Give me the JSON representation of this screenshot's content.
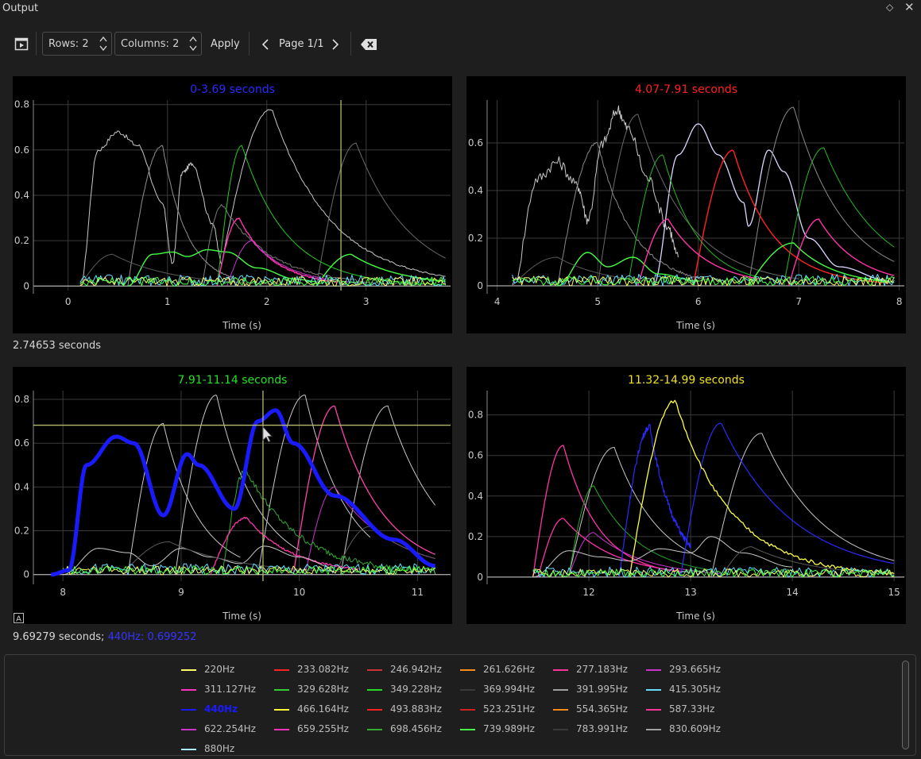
{
  "window": {
    "title": "Output"
  },
  "toolbar": {
    "rows_label": "Rows: 2",
    "columns_label": "Columns: 2",
    "apply_label": "Apply",
    "page_label": "Page 1/1"
  },
  "plots": [
    {
      "title": "0-3.69 seconds",
      "title_color": "#2a2aff",
      "xlabel": "Time (s)",
      "xlim": [
        -0.35,
        3.85
      ],
      "ylim": [
        -0.02,
        0.82
      ],
      "xticks": [
        "0",
        "1",
        "2",
        "3"
      ],
      "yticks": [
        "0",
        "0.2",
        "0.4",
        "0.6",
        "0.8"
      ],
      "cursor_time": 2.74653
    },
    {
      "title": "4.07-7.91 seconds",
      "title_color": "#ff2020",
      "xlabel": "Time (s)",
      "xlim": [
        3.9,
        8.05
      ],
      "ylim": [
        -0.02,
        0.78
      ],
      "xticks": [
        "4",
        "5",
        "6",
        "7",
        "8"
      ],
      "yticks": [
        "0",
        "0.2",
        "0.4",
        "0.6"
      ]
    },
    {
      "title": "7.91-11.14 seconds",
      "title_color": "#22e022",
      "xlabel": "Time (s)",
      "xlim": [
        7.75,
        11.28
      ],
      "ylim": [
        -0.03,
        0.84
      ],
      "xticks": [
        "8",
        "9",
        "10",
        "11"
      ],
      "yticks": [
        "0",
        "0.2",
        "0.4",
        "0.6",
        "0.8"
      ],
      "crosshair": [
        9.69279,
        0.682
      ]
    },
    {
      "title": "11.32-14.99 seconds",
      "title_color": "#f0e020",
      "xlabel": "Time (s)",
      "xlim": [
        11.0,
        15.1
      ],
      "ylim": [
        -0.02,
        0.92
      ],
      "xticks": [
        "12",
        "13",
        "14",
        "15"
      ],
      "yticks": [
        "0",
        "0.2",
        "0.4",
        "0.6",
        "0.8"
      ]
    }
  ],
  "status": {
    "top": "2.74653 seconds",
    "bottom_time": "9.69279 seconds;",
    "bottom_value": "440Hz: 0.699252"
  },
  "legend": [
    {
      "name": "220Hz",
      "color": "#ffff66"
    },
    {
      "name": "233.082Hz",
      "color": "#ff2222"
    },
    {
      "name": "246.942Hz",
      "color": "#cc3333"
    },
    {
      "name": "261.626Hz",
      "color": "#ff8c1a"
    },
    {
      "name": "277.183Hz",
      "color": "#ff3399"
    },
    {
      "name": "293.665Hz",
      "color": "#cc33cc"
    },
    {
      "name": "311.127Hz",
      "color": "#ff33bb"
    },
    {
      "name": "329.628Hz",
      "color": "#33cc33"
    },
    {
      "name": "349.228Hz",
      "color": "#22dd22"
    },
    {
      "name": "369.994Hz",
      "color": "#3a3a3a"
    },
    {
      "name": "391.995Hz",
      "color": "#a0a0a0"
    },
    {
      "name": "415.305Hz",
      "color": "#66ddff"
    },
    {
      "name": "440Hz",
      "color": "#1a1aff",
      "highlight": true
    },
    {
      "name": "466.164Hz",
      "color": "#ffff33"
    },
    {
      "name": "493.883Hz",
      "color": "#ff2222"
    },
    {
      "name": "523.251Hz",
      "color": "#cc2222"
    },
    {
      "name": "554.365Hz",
      "color": "#ff8c1a"
    },
    {
      "name": "587.33Hz",
      "color": "#ff3399"
    },
    {
      "name": "622.254Hz",
      "color": "#cc33cc"
    },
    {
      "name": "659.255Hz",
      "color": "#ff33bb"
    },
    {
      "name": "698.456Hz",
      "color": "#33aa33"
    },
    {
      "name": "739.989Hz",
      "color": "#44ff44"
    },
    {
      "name": "783.991Hz",
      "color": "#3a3a3a"
    },
    {
      "name": "830.609Hz",
      "color": "#a0a0a0"
    },
    {
      "name": "880Hz",
      "color": "#aaeeff"
    }
  ]
}
